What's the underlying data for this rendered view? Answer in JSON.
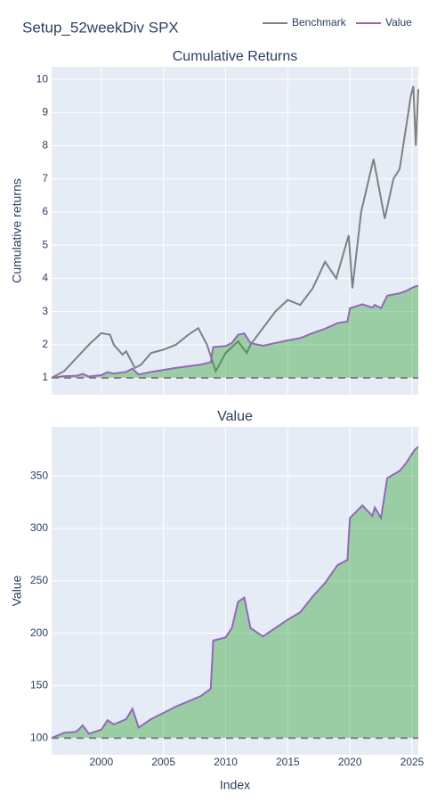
{
  "title": "Setup_52weekDiv SPX",
  "chart_data": [
    {
      "type": "line",
      "title": "Cumulative Returns",
      "y_label": "Cumulative returns",
      "xlim": [
        1996,
        2025.5
      ],
      "ylim": [
        0.49,
        10.38
      ],
      "yticks": [
        1,
        2,
        3,
        4,
        5,
        6,
        7,
        8,
        9,
        10
      ],
      "baseline": 1,
      "fill_color": "#2ca02c",
      "grid": true,
      "series": [
        {
          "name": "Benchmark",
          "color": "#808080",
          "x": [
            1996,
            1997,
            1998,
            1999,
            2000,
            2000.7,
            2001,
            2001.7,
            2002,
            2002.7,
            2003.2,
            2004,
            2005,
            2006,
            2007,
            2007.8,
            2008.5,
            2009.2,
            2010,
            2011,
            2011.7,
            2012,
            2013,
            2014,
            2015,
            2016,
            2017,
            2018,
            2018.9,
            2019.9,
            2020.2,
            2020.9,
            2021.9,
            2022.8,
            2023.5,
            2024,
            2024.9,
            2025.1,
            2025.3,
            2025.5
          ],
          "values": [
            1.0,
            1.2,
            1.6,
            2.0,
            2.35,
            2.3,
            2.0,
            1.7,
            1.8,
            1.3,
            1.4,
            1.75,
            1.85,
            2.0,
            2.3,
            2.5,
            2.0,
            1.2,
            1.75,
            2.1,
            1.75,
            2.0,
            2.5,
            3.0,
            3.35,
            3.2,
            3.7,
            4.5,
            4.0,
            5.3,
            3.7,
            6.0,
            7.6,
            5.8,
            7.0,
            7.3,
            9.5,
            9.8,
            8.0,
            9.7
          ]
        },
        {
          "name": "Value",
          "color": "#9467bd",
          "x": [
            1996,
            1997,
            1998,
            1998.5,
            1999,
            2000,
            2000.5,
            2001,
            2002,
            2002.5,
            2003,
            2004,
            2005,
            2006,
            2007,
            2008,
            2008.8,
            2009,
            2010,
            2010.5,
            2011,
            2011.5,
            2012,
            2013,
            2014,
            2015,
            2016,
            2017,
            2018,
            2019,
            2019.8,
            2020,
            2021,
            2021.8,
            2022,
            2022.5,
            2023,
            2024,
            2024.5,
            2025.2,
            2025.5
          ],
          "values": [
            1.0,
            1.05,
            1.06,
            1.12,
            1.04,
            1.08,
            1.17,
            1.13,
            1.18,
            1.28,
            1.1,
            1.18,
            1.24,
            1.3,
            1.35,
            1.4,
            1.47,
            1.93,
            1.96,
            2.05,
            2.3,
            2.34,
            2.05,
            1.97,
            2.05,
            2.13,
            2.2,
            2.35,
            2.48,
            2.65,
            2.7,
            3.1,
            3.22,
            3.12,
            3.2,
            3.1,
            3.48,
            3.55,
            3.62,
            3.75,
            3.78
          ]
        }
      ]
    },
    {
      "type": "line",
      "title": "Value",
      "y_label": "Value",
      "x_label": "Index",
      "xlim": [
        1996,
        2025.5
      ],
      "xticks": [
        2000,
        2005,
        2010,
        2015,
        2020,
        2025
      ],
      "ylim": [
        84,
        397
      ],
      "yticks": [
        100,
        150,
        200,
        250,
        300,
        350
      ],
      "baseline": 100,
      "fill_color": "#2ca02c",
      "grid": true,
      "series": [
        {
          "name": "Value",
          "color": "#9467bd",
          "x": [
            1996,
            1997,
            1998,
            1998.5,
            1999,
            2000,
            2000.5,
            2001,
            2002,
            2002.5,
            2003,
            2004,
            2005,
            2006,
            2007,
            2008,
            2008.8,
            2009,
            2010,
            2010.5,
            2011,
            2011.5,
            2012,
            2013,
            2014,
            2015,
            2016,
            2017,
            2018,
            2019,
            2019.8,
            2020,
            2021,
            2021.8,
            2022,
            2022.5,
            2023,
            2024,
            2024.5,
            2025.2,
            2025.5
          ],
          "values": [
            100,
            105,
            106,
            112,
            104,
            108,
            117,
            113,
            118,
            128,
            110,
            118,
            124,
            130,
            135,
            140,
            147,
            193,
            196,
            205,
            230,
            234,
            205,
            197,
            205,
            213,
            220,
            235,
            248,
            265,
            270,
            310,
            322,
            312,
            320,
            310,
            348,
            355,
            362,
            375,
            378
          ]
        }
      ]
    }
  ]
}
